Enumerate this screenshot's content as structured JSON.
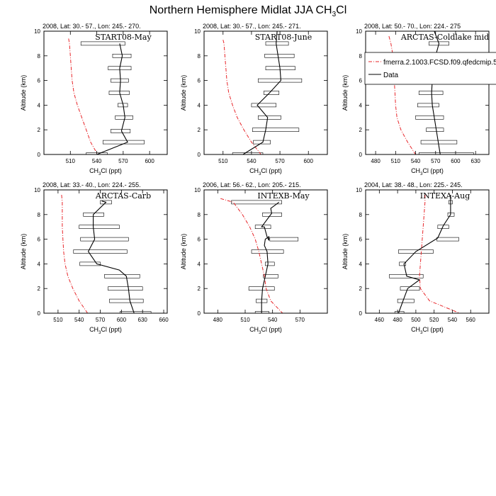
{
  "figure": {
    "title_main": "Northern Hemisphere Midlat JJA CH",
    "title_sub": "3",
    "title_tail": "Cl",
    "ylabel": "Altitude (km)",
    "xlabel_main": "CH",
    "xlabel_sub": "3",
    "xlabel_tail": "Cl (ppt)"
  },
  "legend": {
    "entries": [
      {
        "name": "fmerra.2.1003.FCSD.f09.qfedcmip.5",
        "style": "dashed",
        "color": "#e8262a"
      },
      {
        "name": "Data",
        "style": "solid",
        "color": "#000000"
      }
    ]
  },
  "colors": {
    "model": "#e8262a",
    "data": "#000000"
  },
  "chart_data": [
    {
      "type": "line",
      "header": "2008, Lat:  30.- 57., Lon: 245.- 270.",
      "campaign": "START08-May",
      "xlim": [
        480,
        620
      ],
      "xticks": [
        510,
        540,
        570,
        600
      ],
      "ylim": [
        0,
        10
      ],
      "yticks": [
        0,
        2,
        4,
        6,
        8,
        10
      ],
      "model": {
        "x": [
          508,
          509,
          510,
          511,
          512,
          514,
          518,
          523,
          528,
          533,
          541
        ],
        "y": [
          9.4,
          9.0,
          8.0,
          7.0,
          6.0,
          5.0,
          4.0,
          3.0,
          2.0,
          1.0,
          0.0
        ]
      },
      "data": {
        "x": [
          540,
          575,
          568,
          572,
          570,
          566,
          567,
          566,
          569,
          566
        ],
        "y": [
          0,
          1,
          1.9,
          3,
          4,
          5,
          6,
          7,
          8,
          9
        ]
      },
      "boxes": [
        [
          528,
          552,
          0
        ],
        [
          547,
          594,
          1
        ],
        [
          556,
          578,
          1.9
        ],
        [
          561,
          581,
          3
        ],
        [
          564,
          575,
          4
        ],
        [
          554,
          577,
          5
        ],
        [
          556,
          576,
          6
        ],
        [
          553,
          579,
          7
        ],
        [
          558,
          579,
          8
        ],
        [
          522,
          572,
          9
        ]
      ]
    },
    {
      "type": "line",
      "header": "2008, Lat:  30.- 57., Lon: 245.- 271.",
      "campaign": "START08-June",
      "xlim": [
        490,
        620
      ],
      "xticks": [
        510,
        540,
        570,
        600
      ],
      "ylim": [
        0,
        10
      ],
      "yticks": [
        0,
        2,
        4,
        6,
        8,
        10
      ],
      "model": {
        "x": [
          510,
          511,
          512,
          513,
          514,
          516,
          520,
          525,
          532,
          540,
          550
        ],
        "y": [
          9.3,
          9.0,
          8.0,
          7.0,
          6.0,
          5.0,
          4.0,
          3.0,
          2.0,
          1.0,
          0.0
        ]
      },
      "data": {
        "x": [
          531,
          552,
          555,
          557,
          546,
          559,
          571,
          570,
          568,
          566,
          567
        ],
        "y": [
          0,
          1,
          2,
          3,
          4,
          5,
          6,
          7,
          8,
          9,
          10
        ]
      },
      "boxes": [
        [
          520,
          552,
          0
        ],
        [
          542,
          560,
          1
        ],
        [
          541,
          590,
          2
        ],
        [
          547,
          571,
          3
        ],
        [
          540,
          566,
          4
        ],
        [
          553,
          569,
          5
        ],
        [
          547,
          593,
          6
        ],
        [
          555,
          586,
          7
        ],
        [
          554,
          585,
          8
        ],
        [
          555,
          579,
          9
        ]
      ]
    },
    {
      "type": "line",
      "header": "2008, Lat:  50.- 70., Lon: 224.- 275",
      "campaign": "ARCTAS-Coldlake mid",
      "xlim": [
        465,
        650
      ],
      "xticks": [
        480,
        510,
        540,
        570,
        600,
        630
      ],
      "ylim": [
        0,
        10
      ],
      "yticks": [
        0,
        2,
        4,
        6,
        8,
        10
      ],
      "model": {
        "x": [
          500,
          503,
          506,
          507,
          508,
          509,
          510,
          512,
          518,
          528,
          540
        ],
        "y": [
          9.6,
          9.0,
          8.0,
          7.0,
          6.0,
          5.0,
          4.0,
          3.0,
          2.0,
          1.0,
          0.0
        ]
      },
      "data": {
        "x": [
          577,
          574,
          571,
          568,
          565,
          564,
          565,
          560,
          570,
          575,
          568
        ],
        "y": [
          0,
          1,
          2,
          3,
          4,
          5,
          6,
          7,
          8,
          9,
          10
        ]
      },
      "boxes": [
        [
          545,
          627,
          0
        ],
        [
          548,
          602,
          1
        ],
        [
          556,
          582,
          2
        ],
        [
          540,
          582,
          3
        ],
        [
          543,
          575,
          4
        ],
        [
          545,
          581,
          5
        ],
        [
          538,
          575,
          6
        ],
        [
          543,
          579,
          7
        ],
        [
          554,
          584,
          8
        ],
        [
          560,
          590,
          9
        ]
      ]
    },
    {
      "type": "line",
      "header": "2008, Lat:  33.- 40., Lon: 224.- 255.",
      "campaign": "ARCTAS-Carb",
      "xlim": [
        490,
        665
      ],
      "xticks": [
        510,
        540,
        570,
        600,
        630,
        660
      ],
      "ylim": [
        0,
        10
      ],
      "yticks": [
        0,
        2,
        4,
        6,
        8,
        10
      ],
      "model": {
        "x": [
          515,
          516,
          516,
          516,
          517,
          518,
          520,
          524,
          531,
          540,
          552
        ],
        "y": [
          9.6,
          9.0,
          8.0,
          7.0,
          6.0,
          5.0,
          4.0,
          3.0,
          2.0,
          1.0,
          0.0
        ]
      },
      "data": {
        "x": [
          618,
          612,
          610,
          607,
          597,
          565,
          553,
          562,
          560,
          560,
          578,
          572
        ],
        "y": [
          0,
          1,
          2,
          3,
          3.5,
          4,
          5,
          6,
          7,
          8,
          9,
          9.1
        ]
      },
      "boxes": [
        [
          598,
          642,
          0
        ],
        [
          583,
          631,
          1
        ],
        [
          581,
          630,
          2
        ],
        [
          576,
          626,
          3
        ],
        [
          541,
          570,
          4
        ],
        [
          532,
          608,
          5
        ],
        [
          542,
          610,
          6
        ],
        [
          540,
          597,
          7
        ],
        [
          546,
          575,
          8
        ],
        [
          570,
          586,
          9
        ]
      ]
    },
    {
      "type": "line",
      "header": "2006, Lat: 56.- 62., Lon: 205.- 215.",
      "campaign": "INTEXB-May",
      "xlim": [
        465,
        600
      ],
      "xticks": [
        480,
        510,
        540,
        570
      ],
      "ylim": [
        0,
        10
      ],
      "yticks": [
        0,
        2,
        4,
        6,
        8,
        10
      ],
      "model": {
        "x": [
          483,
          497,
          507,
          515,
          521,
          525,
          528,
          531,
          533,
          538,
          551
        ],
        "y": [
          9.3,
          9.0,
          8.0,
          7.0,
          6.0,
          5.0,
          4.0,
          3.0,
          2.0,
          1.0,
          0.0
        ]
      },
      "data": {
        "x": [
          528,
          528,
          529,
          532,
          535,
          534,
          531,
          532,
          536,
          536,
          534,
          531,
          528,
          539,
          538,
          547
        ],
        "y": [
          0,
          1,
          2,
          3,
          4,
          5,
          5.5,
          6,
          6.2,
          5.9,
          6.2,
          7,
          7.0,
          8.1,
          8.5,
          9.0
        ]
      },
      "boxes": [
        [
          521,
          536,
          0
        ],
        [
          522,
          534,
          1
        ],
        [
          514,
          542,
          2
        ],
        [
          530,
          546,
          3
        ],
        [
          532,
          542,
          4
        ],
        [
          517,
          552,
          5
        ],
        [
          537,
          568,
          6
        ],
        [
          521,
          538,
          7
        ],
        [
          529,
          550,
          8
        ],
        [
          495,
          550,
          9
        ]
      ]
    },
    {
      "type": "line",
      "header": "2004, Lat: 38.- 48., Lon: 225.- 245.",
      "campaign": "INTEXA-Aug",
      "xlim": [
        445,
        580
      ],
      "xticks": [
        460,
        480,
        500,
        520,
        540,
        560
      ],
      "ylim": [
        0,
        10
      ],
      "yticks": [
        0,
        2,
        4,
        6,
        8,
        10
      ],
      "model": {
        "x": [
          510,
          510,
          509,
          508,
          507,
          506,
          505,
          504,
          505,
          515,
          548
        ],
        "y": [
          9.6,
          9.0,
          8.0,
          7.0,
          6.0,
          5.0,
          4.0,
          3.0,
          2.0,
          1.0,
          0.0
        ]
      },
      "data": {
        "x": [
          481,
          486,
          491,
          504,
          490,
          487,
          500,
          524,
          530,
          538,
          538
        ],
        "y": [
          0,
          1,
          2,
          2.7,
          3,
          4,
          5,
          6.1,
          7.1,
          8,
          9.6
        ]
      },
      "boxes": [
        [
          477,
          487,
          0
        ],
        [
          480,
          498,
          1
        ],
        [
          483,
          504,
          2
        ],
        [
          471,
          508,
          3
        ],
        [
          482,
          489,
          4
        ],
        [
          481,
          519,
          5
        ],
        [
          523,
          547,
          6
        ],
        [
          524,
          536,
          7
        ],
        [
          535,
          542,
          8
        ],
        [
          536,
          540,
          9
        ]
      ]
    }
  ]
}
